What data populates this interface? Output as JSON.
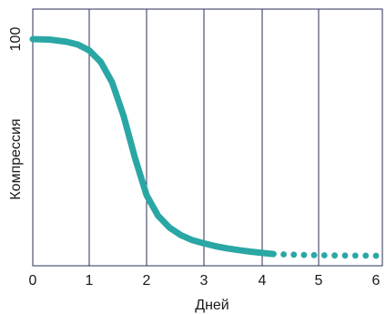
{
  "chart_data": {
    "type": "line",
    "xlabel": "Дней",
    "ylabel": "Компрессия",
    "xlim": [
      0,
      6
    ],
    "ylim": [
      0,
      100
    ],
    "x_ticks": [
      "0",
      "1",
      "2",
      "3",
      "4",
      "5",
      "6"
    ],
    "y_ticks": [
      "100"
    ],
    "grid": "vertical",
    "color": "#2aa7a4",
    "series": [
      {
        "style": "solid",
        "points": [
          [
            0,
            100
          ],
          [
            0.3,
            99.8
          ],
          [
            0.6,
            98.8
          ],
          [
            0.8,
            97.5
          ],
          [
            1.0,
            94.8
          ],
          [
            1.2,
            89.5
          ],
          [
            1.4,
            80
          ],
          [
            1.6,
            64.5
          ],
          [
            1.8,
            45
          ],
          [
            2.0,
            28
          ],
          [
            2.2,
            18.5
          ],
          [
            2.4,
            13
          ],
          [
            2.6,
            9.5
          ],
          [
            2.8,
            7.2
          ],
          [
            3.0,
            5.7
          ],
          [
            3.2,
            4.4
          ],
          [
            3.4,
            3.4
          ],
          [
            3.6,
            2.6
          ],
          [
            3.8,
            1.9
          ],
          [
            4.0,
            1.3
          ],
          [
            4.2,
            0.8
          ]
        ]
      },
      {
        "style": "dotted",
        "points": [
          [
            4.2,
            0.8
          ],
          [
            4.5,
            0.55
          ],
          [
            4.8,
            0.35
          ],
          [
            5.1,
            0.2
          ],
          [
            5.4,
            0.1
          ],
          [
            5.7,
            0.05
          ],
          [
            6.0,
            0
          ]
        ]
      }
    ]
  }
}
